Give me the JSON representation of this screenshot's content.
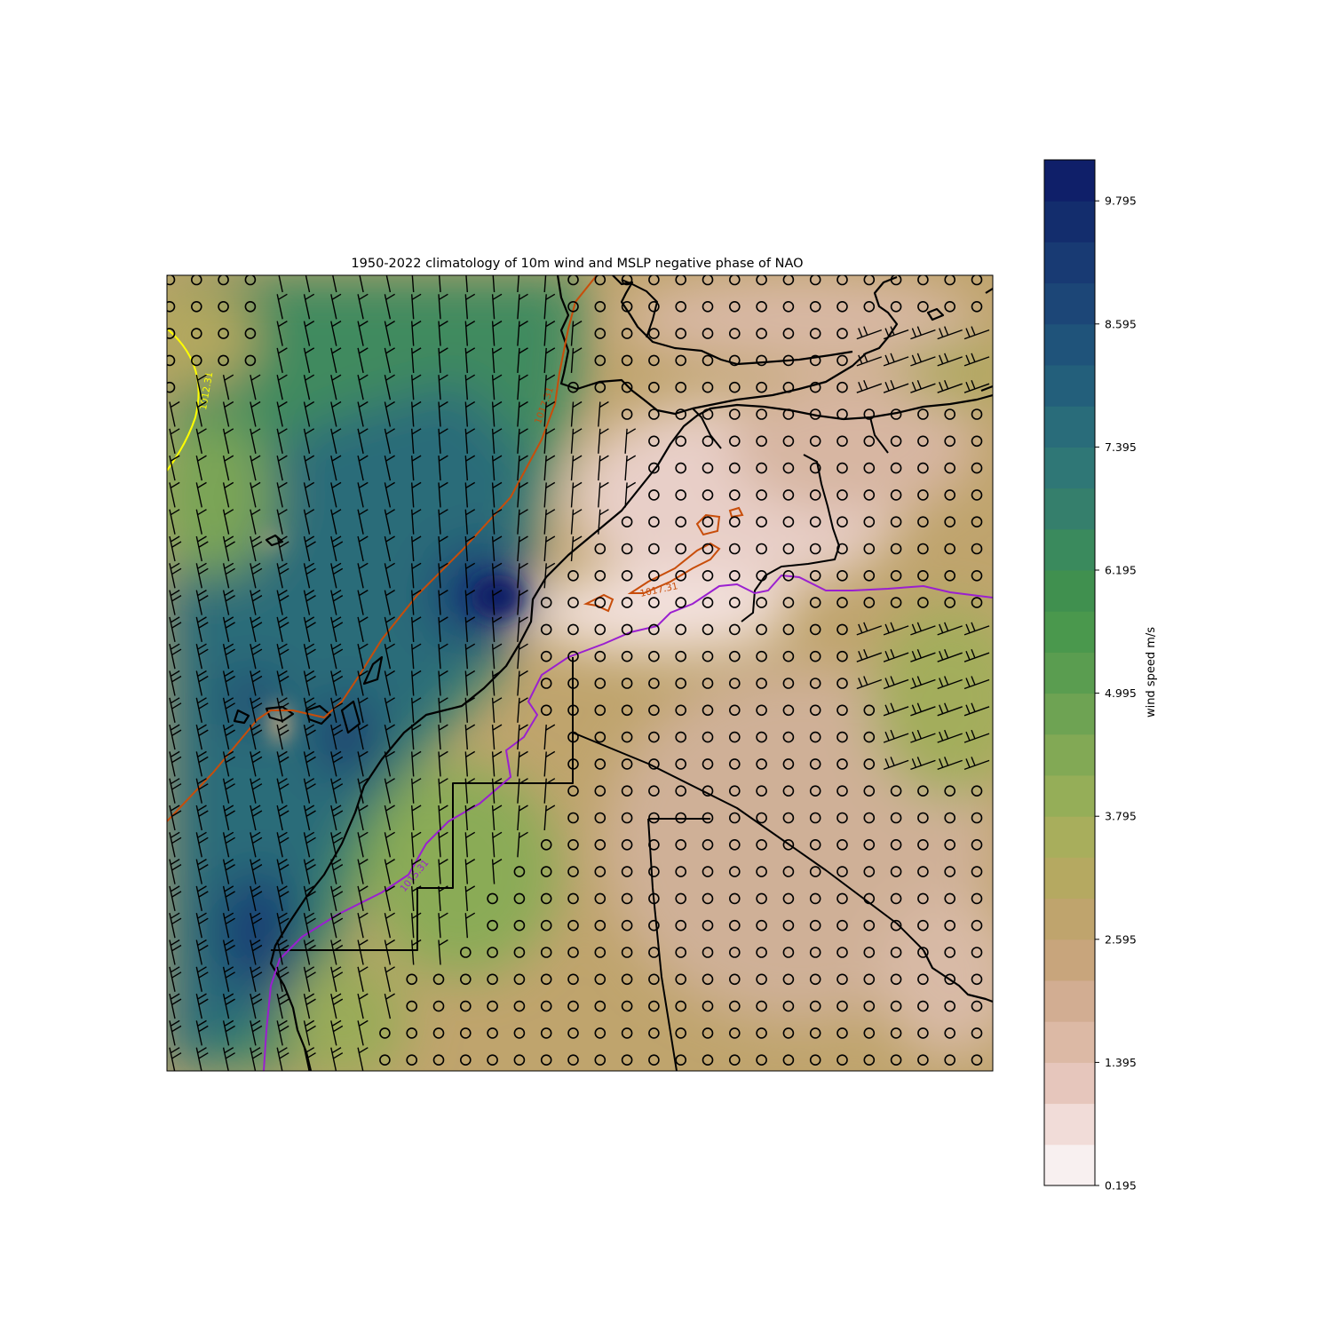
{
  "figure": {
    "title": "1950-2022 climatology of 10m wind and MSLP negative phase of NAO"
  },
  "colorbar": {
    "label": "wind speed m/s",
    "min": 0.195,
    "max": 10.195,
    "step": 0.4,
    "ticks": [
      "9.795",
      "8.595",
      "7.395",
      "6.195",
      "4.995",
      "3.795",
      "2.595",
      "1.395",
      "0.195"
    ],
    "tick_values": [
      9.795,
      8.595,
      7.395,
      6.195,
      4.995,
      3.795,
      2.595,
      1.395,
      0.195
    ],
    "colors": [
      "#f8f0f0",
      "#f1dcd8",
      "#e6c6bc",
      "#dcb9a5",
      "#d2ad92",
      "#c8a57c",
      "#bfa46d",
      "#b5a961",
      "#a8ae5c",
      "#95ae58",
      "#82a955",
      "#6ea353",
      "#5a9d50",
      "#4a984d",
      "#40904f",
      "#3a8a5d",
      "#357f6c",
      "#2f7776",
      "#296c7a",
      "#235f7b",
      "#1f537a",
      "#1c4677",
      "#183a73",
      "#132d6d",
      "#0f1f69",
      "#0a1266",
      "#05064a"
    ]
  },
  "contours": [
    {
      "name": "mslp-1012",
      "label": "1012.31",
      "color": "#ffff00"
    },
    {
      "name": "mslp-1017-coast",
      "label": "1017.31",
      "color": "#c84d0a"
    },
    {
      "name": "mslp-1017-inland",
      "label": "1017.31",
      "color": "#c84d0a"
    },
    {
      "name": "mslp-1015",
      "label": "1015.31",
      "color": "#9a1fd0"
    }
  ],
  "map": {
    "projection": "PlateCarree",
    "features": [
      "coastlines",
      "borders",
      "wind-barbs",
      "calm-circles",
      "wind-speed-filled-contours",
      "mslp-contours"
    ]
  }
}
